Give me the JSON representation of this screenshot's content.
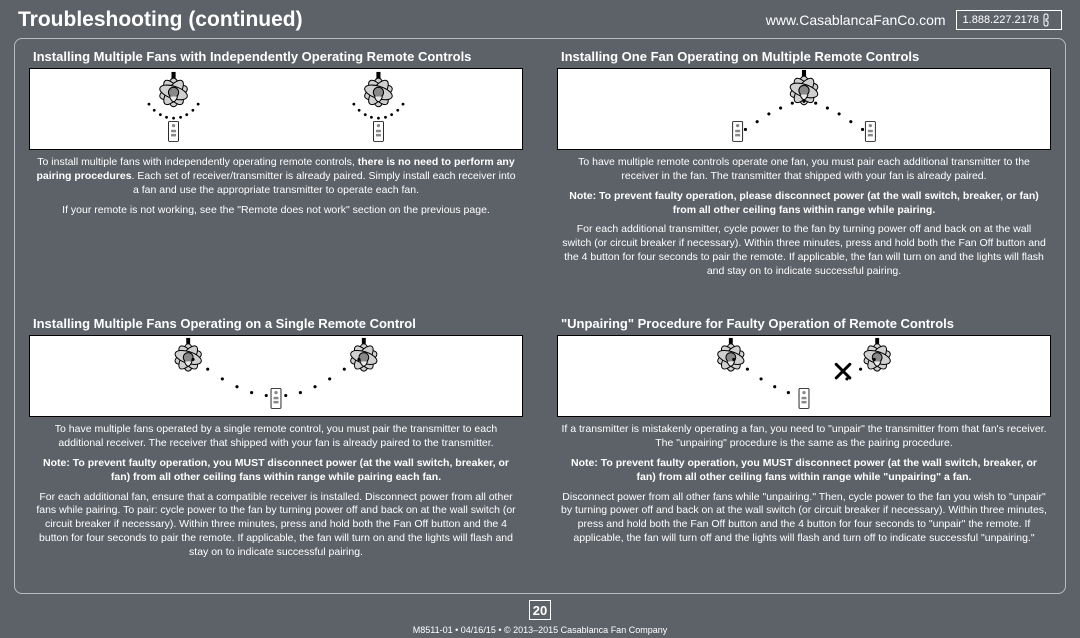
{
  "header": {
    "title": "Troubleshooting (continued)",
    "website": "www.CasablancaFanCo.com",
    "phone": "1.888.227.2178"
  },
  "page_number": "20",
  "footer": "M8511-01 • 04/16/15 • © 2013–2015 Casablanca Fan Company",
  "colors": {
    "page_bg": "#5d6269",
    "frame_border": "#b8bcc2",
    "text_light": "#ffffff",
    "illus_bg": "#ffffff",
    "illus_stroke": "#000000"
  },
  "sections": [
    {
      "title": "Installing Multiple Fans with Independently Operating Remote Controls",
      "illustration": "two-fans-two-remotes",
      "paragraphs": [
        {
          "html": "To install multiple fans with independently operating remote controls, <b>there is no need to perform any pairing procedures</b>. Each set of receiver/transmitter is already paired. Simply install each receiver into a fan and use the appropriate transmitter to operate each fan."
        },
        {
          "html": "If your remote is not working, see the \"Remote does not work\" section on the previous page."
        }
      ]
    },
    {
      "title": "Installing One Fan Operating on Multiple Remote Controls",
      "illustration": "one-fan-two-remotes",
      "paragraphs": [
        {
          "html": "To have multiple remote controls operate one fan, you must pair each additional transmitter to the receiver in the fan. The transmitter that shipped with your fan is already paired."
        },
        {
          "html": "<b>Note: To prevent faulty operation, please disconnect power (at the wall switch, breaker, or fan) from all other ceiling fans within range while pairing.</b>"
        },
        {
          "html": "For each additional transmitter, cycle power to the fan by turning power off and back on at the wall switch (or circuit breaker if necessary). Within three minutes, press and hold both the Fan Off button and the 4 button for four seconds to pair the remote. If applicable, the fan will turn on and the lights will flash and stay on to indicate successful pairing."
        }
      ]
    },
    {
      "title": "Installing Multiple Fans Operating on a Single Remote Control",
      "illustration": "two-fans-one-remote",
      "paragraphs": [
        {
          "html": "To have multiple fans operated by a single remote control, you must pair the transmitter to each additional receiver. The receiver that shipped with your fan is already paired to the transmitter."
        },
        {
          "html": "<b>Note: To prevent faulty operation, you MUST disconnect power (at the wall switch, breaker, or fan) from all other ceiling fans within range while pairing each fan.</b>"
        },
        {
          "html": "For each additional fan, ensure that a compatible receiver is installed. Disconnect power from all other fans while pairing. To pair: cycle power to the fan by turning power off and back on at the wall switch (or circuit breaker if necessary). Within three minutes, press and hold both the Fan Off button and the 4 button for four seconds to pair the remote. If applicable, the fan will turn on and the lights will flash and stay on to indicate successful pairing."
        }
      ]
    },
    {
      "title": "\"Unpairing\" Procedure for Faulty Operation of Remote Controls",
      "illustration": "unpair",
      "paragraphs": [
        {
          "html": "If a transmitter is mistakenly operating a fan, you need to \"unpair\" the transmitter from that fan's receiver. The \"unpairing\" procedure is the same as the pairing procedure."
        },
        {
          "html": "<b>Note: To prevent faulty operation, you MUST disconnect power (at the wall switch, breaker, or fan) from all other ceiling fans within range while \"unpairing\" a fan.</b>"
        },
        {
          "html": "Disconnect power from all other fans while \"unpairing.\" Then, cycle power to the fan you wish to \"unpair\" by turning power off and back on at the wall switch (or circuit breaker if necessary). Within three minutes, press and hold both the Fan Off button and the 4 button for four seconds to \"unpair\" the remote. If applicable, the fan will turn off and the lights will flash and turn off to indicate successful \"unpairing.\""
        }
      ]
    }
  ]
}
